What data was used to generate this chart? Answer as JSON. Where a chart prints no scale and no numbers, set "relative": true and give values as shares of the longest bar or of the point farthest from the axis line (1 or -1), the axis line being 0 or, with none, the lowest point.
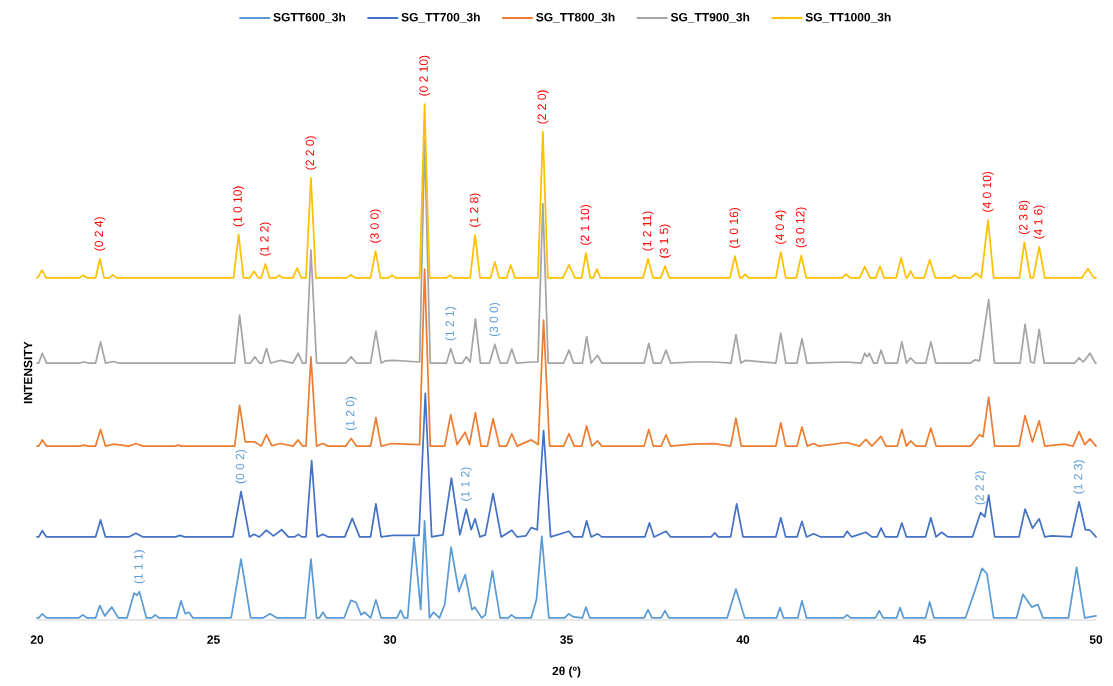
{
  "chart_data": {
    "type": "line",
    "relative": true,
    "xlabel": "2θ (º)",
    "ylabel": "INTENSITY",
    "legend": "top",
    "xlim": [
      20,
      50
    ],
    "xticks": [
      20,
      25,
      30,
      35,
      40,
      45,
      50
    ],
    "series": [
      {
        "name": "SGTT600_3h",
        "color": "#5b9bd5",
        "x": [
          20,
          20.05,
          20.15,
          20.27,
          21.18,
          21.3,
          21.42,
          21.66,
          21.78,
          21.92,
          22.12,
          22.3,
          22.55,
          22.75,
          22.83,
          22.9,
          23.1,
          23.25,
          23.35,
          23.45,
          23.95,
          24.08,
          24.2,
          24.3,
          24.42,
          25.5,
          25.78,
          26.05,
          26.4,
          26.6,
          26.8,
          27.6,
          27.76,
          27.92,
          28.0,
          28.1,
          28.2,
          28.7,
          28.89,
          29.04,
          29.18,
          29.28,
          29.45,
          29.6,
          29.75,
          30.2,
          30.3,
          30.4,
          30.5,
          30.68,
          30.87,
          30.98,
          31.12,
          31.23,
          31.4,
          31.55,
          31.73,
          31.95,
          32.13,
          32.32,
          32.4,
          32.6,
          32.7,
          32.9,
          33.12,
          33.35,
          33.44,
          33.55,
          34.0,
          34.15,
          34.3,
          34.5,
          34.95,
          35.06,
          35.2,
          35.45,
          35.55,
          35.66,
          37.2,
          37.31,
          37.42,
          37.68,
          37.79,
          37.9,
          39.55,
          39.8,
          40.05,
          40.95,
          41.05,
          41.15,
          41.55,
          41.67,
          41.8,
          42.85,
          42.95,
          43.05,
          43.75,
          43.86,
          43.97,
          44.35,
          44.45,
          44.55,
          45.17,
          45.29,
          45.41,
          46.3,
          46.56,
          46.77,
          46.91,
          47.1,
          47.75,
          47.93,
          48.18,
          48.35,
          48.5,
          49.22,
          49.45,
          49.68,
          50
        ],
        "values": [
          0.004,
          0.004,
          0.012,
          0.004,
          0.004,
          0.01,
          0.004,
          0.004,
          0.028,
          0.008,
          0.025,
          0.004,
          0.004,
          0.052,
          0.048,
          0.055,
          0.004,
          0.004,
          0.01,
          0.004,
          0.004,
          0.037,
          0.012,
          0.015,
          0.004,
          0.004,
          0.118,
          0.004,
          0.004,
          0.012,
          0.004,
          0.004,
          0.118,
          0.004,
          0.004,
          0.015,
          0.004,
          0.004,
          0.038,
          0.034,
          0.01,
          0.015,
          0.004,
          0.039,
          0.004,
          0.004,
          0.019,
          0.004,
          0.004,
          0.159,
          0.02,
          0.192,
          0.004,
          0.015,
          0.004,
          0.03,
          0.141,
          0.055,
          0.088,
          0.02,
          0.025,
          0.004,
          0.01,
          0.095,
          0.004,
          0.004,
          0.01,
          0.004,
          0.004,
          0.04,
          0.162,
          0.004,
          0.004,
          0.012,
          0.006,
          0.004,
          0.025,
          0.004,
          0.004,
          0.02,
          0.004,
          0.004,
          0.018,
          0.004,
          0.004,
          0.06,
          0.004,
          0.004,
          0.024,
          0.004,
          0.004,
          0.037,
          0.004,
          0.004,
          0.01,
          0.004,
          0.004,
          0.018,
          0.004,
          0.004,
          0.024,
          0.004,
          0.004,
          0.035,
          0.004,
          0.004,
          0.055,
          0.1,
          0.09,
          0.004,
          0.004,
          0.05,
          0.025,
          0.03,
          0.004,
          0.004,
          0.102,
          0.004,
          0.008
        ]
      },
      {
        "name": "SG_TT700_3h",
        "color": "#4472c4",
        "x": [
          20,
          20.05,
          20.15,
          20.27,
          21.66,
          21.8,
          21.94,
          22.6,
          22.8,
          23.0,
          23.93,
          24.05,
          24.17,
          25.55,
          25.78,
          26.02,
          26.15,
          26.3,
          26.5,
          26.7,
          26.93,
          27.12,
          27.3,
          27.4,
          27.5,
          27.62,
          27.78,
          27.94,
          28.1,
          28.25,
          28.72,
          28.93,
          29.14,
          29.45,
          29.6,
          29.75,
          30.08,
          30.82,
          31.0,
          31.18,
          31.5,
          31.74,
          31.98,
          32.16,
          32.3,
          32.41,
          32.55,
          32.7,
          32.92,
          33.15,
          33.45,
          33.6,
          33.85,
          34.0,
          34.17,
          34.35,
          34.55,
          35.07,
          35.2,
          35.45,
          35.57,
          35.7,
          35.88,
          36.0,
          37.22,
          37.35,
          37.48,
          37.82,
          37.95,
          39.1,
          39.2,
          39.3,
          39.65,
          39.82,
          40.0,
          40.93,
          41.07,
          41.21,
          41.53,
          41.67,
          41.8,
          42.0,
          42.2,
          42.85,
          42.95,
          43.08,
          43.48,
          43.65,
          43.8,
          43.91,
          44.03,
          44.37,
          44.5,
          44.63,
          45.17,
          45.32,
          45.47,
          45.63,
          45.8,
          46.5,
          46.73,
          46.85,
          46.96,
          47.13,
          47.82,
          47.99,
          48.2,
          48.39,
          48.55,
          48.74,
          49.3,
          49.52,
          49.7,
          49.83,
          50
        ],
        "values": [
          0.161,
          0.161,
          0.173,
          0.161,
          0.161,
          0.194,
          0.161,
          0.161,
          0.168,
          0.161,
          0.161,
          0.164,
          0.161,
          0.161,
          0.249,
          0.161,
          0.166,
          0.161,
          0.174,
          0.163,
          0.175,
          0.161,
          0.161,
          0.166,
          0.161,
          0.161,
          0.309,
          0.161,
          0.166,
          0.161,
          0.161,
          0.197,
          0.161,
          0.161,
          0.225,
          0.161,
          0.164,
          0.164,
          0.439,
          0.161,
          0.165,
          0.275,
          0.165,
          0.215,
          0.175,
          0.196,
          0.161,
          0.165,
          0.245,
          0.161,
          0.174,
          0.161,
          0.163,
          0.179,
          0.175,
          0.367,
          0.161,
          0.172,
          0.161,
          0.161,
          0.192,
          0.161,
          0.167,
          0.161,
          0.161,
          0.188,
          0.161,
          0.172,
          0.161,
          0.161,
          0.169,
          0.161,
          0.161,
          0.225,
          0.161,
          0.161,
          0.198,
          0.161,
          0.161,
          0.191,
          0.161,
          0.167,
          0.161,
          0.161,
          0.172,
          0.161,
          0.17,
          0.161,
          0.161,
          0.178,
          0.161,
          0.161,
          0.188,
          0.161,
          0.161,
          0.198,
          0.161,
          0.17,
          0.161,
          0.161,
          0.208,
          0.2,
          0.242,
          0.161,
          0.161,
          0.215,
          0.178,
          0.196,
          0.161,
          0.163,
          0.161,
          0.229,
          0.175,
          0.174,
          0.161
        ]
      },
      {
        "name": "SG_TT800_3h",
        "color": "#ed7d31",
        "x": [
          20,
          20.05,
          20.15,
          20.27,
          21.2,
          21.33,
          21.45,
          21.66,
          21.8,
          21.94,
          22.18,
          22.6,
          22.8,
          23.0,
          23.9,
          24.0,
          24.1,
          25.6,
          25.74,
          25.9,
          26.17,
          26.35,
          26.5,
          26.65,
          26.9,
          27.25,
          27.4,
          27.52,
          27.62,
          27.76,
          27.92,
          28.1,
          28.25,
          28.75,
          28.9,
          29.05,
          29.45,
          29.6,
          29.75,
          30.05,
          30.84,
          30.98,
          31.14,
          31.55,
          31.72,
          31.9,
          32.13,
          32.25,
          32.42,
          32.58,
          32.76,
          32.92,
          33.1,
          33.3,
          33.45,
          33.6,
          34.0,
          34.2,
          34.35,
          34.52,
          34.92,
          35.07,
          35.22,
          35.43,
          35.57,
          35.72,
          35.88,
          36.0,
          37.2,
          37.33,
          37.46,
          37.68,
          37.82,
          37.95,
          38.58,
          39.18,
          39.65,
          39.8,
          39.95,
          40.93,
          41.07,
          41.21,
          41.53,
          41.67,
          41.82,
          42.0,
          42.15,
          42.93,
          43.3,
          43.48,
          43.65,
          43.91,
          44.05,
          44.37,
          44.5,
          44.63,
          44.75,
          44.9,
          45.17,
          45.32,
          45.47,
          46.45,
          46.7,
          46.8,
          46.96,
          47.13,
          47.82,
          47.99,
          48.2,
          48.39,
          48.55,
          49.1,
          49.35,
          49.52,
          49.68,
          49.83,
          50
        ],
        "values": [
          0.337,
          0.337,
          0.349,
          0.337,
          0.337,
          0.339,
          0.337,
          0.337,
          0.369,
          0.337,
          0.341,
          0.337,
          0.342,
          0.337,
          0.337,
          0.339,
          0.337,
          0.337,
          0.416,
          0.345,
          0.345,
          0.337,
          0.359,
          0.338,
          0.342,
          0.337,
          0.349,
          0.337,
          0.337,
          0.51,
          0.337,
          0.342,
          0.337,
          0.337,
          0.352,
          0.337,
          0.337,
          0.392,
          0.337,
          0.342,
          0.34,
          0.68,
          0.337,
          0.337,
          0.398,
          0.34,
          0.364,
          0.34,
          0.402,
          0.337,
          0.337,
          0.39,
          0.337,
          0.337,
          0.361,
          0.337,
          0.349,
          0.34,
          0.581,
          0.337,
          0.337,
          0.361,
          0.337,
          0.337,
          0.376,
          0.337,
          0.347,
          0.337,
          0.337,
          0.369,
          0.337,
          0.337,
          0.359,
          0.337,
          0.341,
          0.342,
          0.337,
          0.391,
          0.337,
          0.337,
          0.382,
          0.337,
          0.337,
          0.374,
          0.337,
          0.342,
          0.337,
          0.344,
          0.337,
          0.35,
          0.337,
          0.356,
          0.337,
          0.337,
          0.369,
          0.337,
          0.347,
          0.337,
          0.337,
          0.372,
          0.337,
          0.337,
          0.359,
          0.355,
          0.432,
          0.337,
          0.337,
          0.396,
          0.345,
          0.386,
          0.337,
          0.341,
          0.337,
          0.365,
          0.34,
          0.351,
          0.337
        ]
      },
      {
        "name": "SG_TT900_3h",
        "color": "#a5a5a5",
        "x": [
          20,
          20.05,
          20.15,
          20.27,
          21.2,
          21.33,
          21.45,
          21.66,
          21.8,
          21.94,
          22.18,
          22.3,
          25.6,
          25.74,
          25.9,
          26.05,
          26.17,
          26.3,
          26.38,
          26.5,
          26.62,
          26.9,
          27.25,
          27.4,
          27.52,
          27.62,
          27.76,
          27.92,
          28.75,
          28.9,
          29.05,
          29.45,
          29.6,
          29.75,
          29.86,
          30.09,
          30.84,
          30.98,
          31.14,
          31.6,
          31.72,
          31.85,
          32.05,
          32.16,
          32.27,
          32.42,
          32.56,
          32.82,
          32.97,
          33.12,
          33.32,
          33.45,
          33.58,
          34.04,
          34.19,
          34.33,
          34.48,
          34.92,
          35.07,
          35.2,
          35.45,
          35.57,
          35.7,
          35.88,
          36.0,
          37.2,
          37.33,
          37.46,
          37.68,
          37.82,
          37.95,
          38.58,
          39.18,
          39.66,
          39.8,
          39.94,
          40.06,
          40.93,
          41.07,
          41.21,
          41.53,
          41.67,
          41.81,
          42.93,
          43.35,
          43.45,
          43.52,
          43.58,
          43.7,
          43.8,
          43.91,
          44.03,
          44.37,
          44.5,
          44.63,
          44.75,
          44.88,
          45.18,
          45.32,
          45.46,
          46.45,
          46.57,
          46.7,
          46.96,
          47.12,
          47.85,
          47.99,
          48.15,
          48.25,
          48.39,
          48.53,
          49.4,
          49.52,
          49.64,
          49.83,
          49.98,
          50
        ],
        "values": [
          0.498,
          0.498,
          0.517,
          0.498,
          0.498,
          0.5,
          0.498,
          0.498,
          0.539,
          0.498,
          0.501,
          0.498,
          0.498,
          0.591,
          0.498,
          0.498,
          0.51,
          0.498,
          0.498,
          0.526,
          0.498,
          0.503,
          0.498,
          0.517,
          0.498,
          0.498,
          0.717,
          0.498,
          0.498,
          0.51,
          0.498,
          0.498,
          0.56,
          0.498,
          0.502,
          0.503,
          0.5,
          0.93,
          0.498,
          0.498,
          0.526,
          0.498,
          0.498,
          0.51,
          0.5,
          0.583,
          0.498,
          0.498,
          0.534,
          0.498,
          0.498,
          0.525,
          0.498,
          0.5,
          0.5,
          0.807,
          0.498,
          0.498,
          0.523,
          0.498,
          0.498,
          0.549,
          0.498,
          0.513,
          0.498,
          0.498,
          0.536,
          0.498,
          0.498,
          0.523,
          0.498,
          0.5,
          0.5,
          0.498,
          0.553,
          0.498,
          0.503,
          0.498,
          0.556,
          0.498,
          0.498,
          0.545,
          0.498,
          0.5,
          0.498,
          0.517,
          0.51,
          0.517,
          0.498,
          0.498,
          0.523,
          0.498,
          0.498,
          0.539,
          0.498,
          0.508,
          0.498,
          0.498,
          0.539,
          0.498,
          0.498,
          0.504,
          0.502,
          0.621,
          0.498,
          0.498,
          0.573,
          0.5,
          0.498,
          0.563,
          0.498,
          0.498,
          0.508,
          0.5,
          0.517,
          0.498,
          0.498
        ]
      },
      {
        "name": "SG_TT1000_3h",
        "color": "#ffc000",
        "x": [
          20,
          20.02,
          20.14,
          20.26,
          21.19,
          21.31,
          21.43,
          21.66,
          21.78,
          21.9,
          22.05,
          22.15,
          22.25,
          25.57,
          25.71,
          25.85,
          26.03,
          26.15,
          26.27,
          26.35,
          26.47,
          26.59,
          26.76,
          26.86,
          26.96,
          27.25,
          27.37,
          27.49,
          27.62,
          27.76,
          27.9,
          28.77,
          28.89,
          29.01,
          29.45,
          29.59,
          29.73,
          29.96,
          30.06,
          30.16,
          30.84,
          30.98,
          31.12,
          31.6,
          31.7,
          31.8,
          32.27,
          32.41,
          32.55,
          32.85,
          32.97,
          33.09,
          33.3,
          33.42,
          33.54,
          34.19,
          34.33,
          34.47,
          34.9,
          35.07,
          35.24,
          35.43,
          35.55,
          35.67,
          35.76,
          35.86,
          35.96,
          37.17,
          37.31,
          37.45,
          37.67,
          37.79,
          37.91,
          39.63,
          39.77,
          39.91,
          39.96,
          40.06,
          40.16,
          40.93,
          41.07,
          41.21,
          41.51,
          41.65,
          41.79,
          42.8,
          42.92,
          43.04,
          43.3,
          43.45,
          43.6,
          43.76,
          43.88,
          44.0,
          44.34,
          44.48,
          44.62,
          44.65,
          44.75,
          44.85,
          45.13,
          45.29,
          45.45,
          45.89,
          45.99,
          46.09,
          46.45,
          46.6,
          46.75,
          46.94,
          47.1,
          47.83,
          47.97,
          48.14,
          48.22,
          48.39,
          48.55,
          49.6,
          49.77,
          49.94,
          50
        ],
        "values": [
          0.663,
          0.663,
          0.678,
          0.663,
          0.663,
          0.668,
          0.663,
          0.663,
          0.7,
          0.663,
          0.663,
          0.669,
          0.663,
          0.663,
          0.747,
          0.663,
          0.663,
          0.676,
          0.663,
          0.663,
          0.69,
          0.663,
          0.663,
          0.668,
          0.663,
          0.663,
          0.682,
          0.663,
          0.663,
          0.857,
          0.663,
          0.663,
          0.669,
          0.663,
          0.663,
          0.715,
          0.663,
          0.663,
          0.668,
          0.663,
          0.663,
          1.0,
          0.663,
          0.663,
          0.668,
          0.663,
          0.663,
          0.746,
          0.663,
          0.663,
          0.694,
          0.663,
          0.663,
          0.688,
          0.663,
          0.663,
          0.946,
          0.663,
          0.663,
          0.688,
          0.663,
          0.663,
          0.711,
          0.663,
          0.663,
          0.68,
          0.663,
          0.663,
          0.7,
          0.663,
          0.663,
          0.686,
          0.663,
          0.663,
          0.705,
          0.663,
          0.663,
          0.67,
          0.663,
          0.663,
          0.713,
          0.663,
          0.663,
          0.706,
          0.663,
          0.663,
          0.67,
          0.663,
          0.663,
          0.685,
          0.663,
          0.663,
          0.685,
          0.663,
          0.663,
          0.702,
          0.663,
          0.663,
          0.676,
          0.663,
          0.663,
          0.698,
          0.663,
          0.663,
          0.668,
          0.663,
          0.663,
          0.672,
          0.663,
          0.775,
          0.663,
          0.663,
          0.732,
          0.663,
          0.663,
          0.723,
          0.663,
          0.663,
          0.681,
          0.663,
          0.663
        ]
      }
    ],
    "annotations": [
      {
        "text": "(0 2 4)",
        "x": 21.78,
        "y": 0.7
      },
      {
        "text": "(1 0 10)",
        "x": 25.71,
        "y": 0.747
      },
      {
        "text": "(1 2 2)",
        "x": 26.47,
        "y": 0.69
      },
      {
        "text": "(2 2 0)",
        "x": 27.76,
        "y": 0.857
      },
      {
        "text": "(3 0 0)",
        "x": 29.59,
        "y": 0.715
      },
      {
        "text": "(0 2 10)",
        "x": 30.98,
        "y": 1.0
      },
      {
        "text": "(1 2 8)",
        "x": 32.41,
        "y": 0.746
      },
      {
        "text": "(2 2 0)",
        "x": 34.33,
        "y": 0.946
      },
      {
        "text": "(2 1 10)",
        "x": 35.55,
        "y": 0.711
      },
      {
        "text": "(1 2 11)",
        "x": 37.31,
        "y": 0.7
      },
      {
        "text": "(3 1 5)",
        "x": 37.79,
        "y": 0.686
      },
      {
        "text": "(1 0 16)",
        "x": 39.77,
        "y": 0.705
      },
      {
        "text": "(4 0 4)",
        "x": 41.07,
        "y": 0.713
      },
      {
        "text": "(3 0 12)",
        "x": 41.65,
        "y": 0.706
      },
      {
        "text": "(4 0 10)",
        "x": 46.94,
        "y": 0.775
      },
      {
        "text": "(2 3 8)",
        "x": 47.97,
        "y": 0.732
      },
      {
        "text": "(4 1 6)",
        "x": 48.39,
        "y": 0.723
      },
      {
        "text": "(1 1 1)",
        "x": 22.9,
        "y": 0.055
      },
      {
        "text": "(0 0 2)",
        "x": 25.78,
        "y": 0.249
      },
      {
        "text": "(1 2 0)",
        "x": 28.9,
        "y": 0.352
      },
      {
        "text": "(1 2 1)",
        "x": 31.72,
        "y": 0.526
      },
      {
        "text": "(3 0 0)",
        "x": 32.97,
        "y": 0.534
      },
      {
        "text": "(1 1 2)",
        "x": 32.16,
        "y": 0.215
      },
      {
        "text": "(2 2 2)",
        "x": 46.73,
        "y": 0.208
      },
      {
        "text": "(1 2 3)",
        "x": 49.52,
        "y": 0.229
      }
    ]
  }
}
